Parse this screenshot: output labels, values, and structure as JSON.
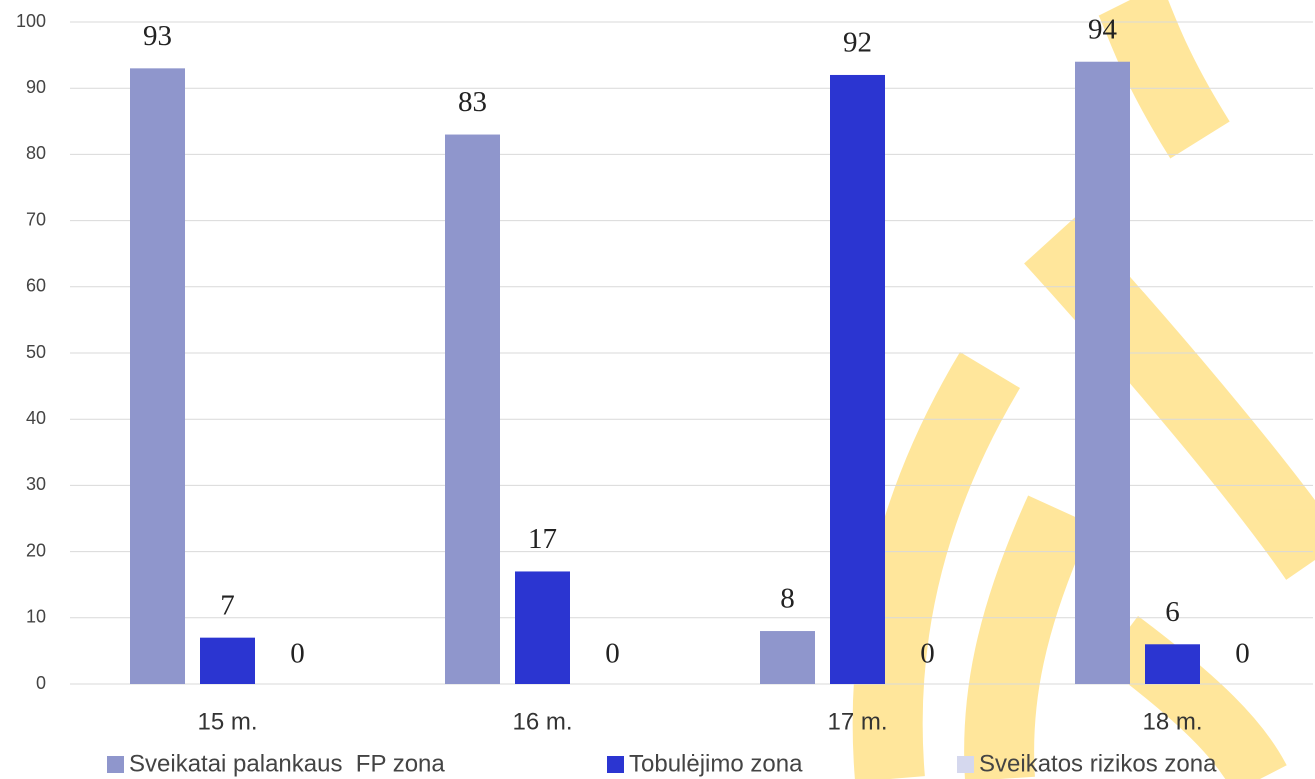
{
  "chart_data": {
    "type": "bar",
    "categories": [
      "15 m.",
      "16 m.",
      "17 m.",
      "18 m."
    ],
    "series": [
      {
        "name": "Sveikatai palankaus  FP zona",
        "color": "#8f96cc",
        "values": [
          93,
          83,
          8,
          94
        ]
      },
      {
        "name": "Tobulėjimo zona",
        "color": "#2b35d1",
        "values": [
          7,
          17,
          92,
          6
        ]
      },
      {
        "name": "Sveikatos rizikos zona",
        "color": "#d5d8ee",
        "values": [
          0,
          0,
          0,
          0
        ]
      }
    ],
    "ylim": [
      0,
      100
    ],
    "yticks": [
      0,
      10,
      20,
      30,
      40,
      50,
      60,
      70,
      80,
      90,
      100
    ],
    "grid": true,
    "legend": "bottom"
  }
}
